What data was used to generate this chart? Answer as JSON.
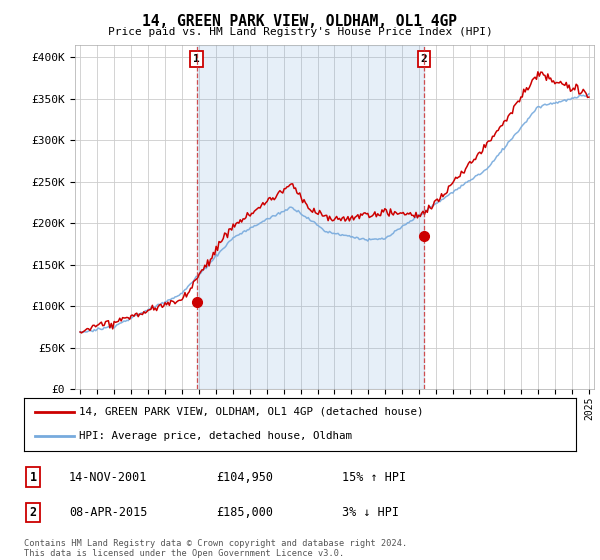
{
  "title": "14, GREEN PARK VIEW, OLDHAM, OL1 4GP",
  "subtitle": "Price paid vs. HM Land Registry's House Price Index (HPI)",
  "ylabel_ticks": [
    "£0",
    "£50K",
    "£100K",
    "£150K",
    "£200K",
    "£250K",
    "£300K",
    "£350K",
    "£400K"
  ],
  "ytick_values": [
    0,
    50000,
    100000,
    150000,
    200000,
    250000,
    300000,
    350000,
    400000
  ],
  "ylim": [
    0,
    415000
  ],
  "sale1_date_x": 2001.87,
  "sale1_price": 104950,
  "sale2_date_x": 2015.27,
  "sale2_price": 185000,
  "legend_line1": "14, GREEN PARK VIEW, OLDHAM, OL1 4GP (detached house)",
  "legend_line2": "HPI: Average price, detached house, Oldham",
  "table_row1": [
    "1",
    "14-NOV-2001",
    "£104,950",
    "15% ↑ HPI"
  ],
  "table_row2": [
    "2",
    "08-APR-2015",
    "£185,000",
    "3% ↓ HPI"
  ],
  "footer": "Contains HM Land Registry data © Crown copyright and database right 2024.\nThis data is licensed under the Open Government Licence v3.0.",
  "line_color_red": "#cc0000",
  "line_color_blue": "#77aadd",
  "fill_color_blue": "#ddeeff",
  "vline_color": "#cc3333",
  "background_color": "#ffffff",
  "grid_color": "#cccccc",
  "xlim_start": 1994.7,
  "xlim_end": 2025.3
}
